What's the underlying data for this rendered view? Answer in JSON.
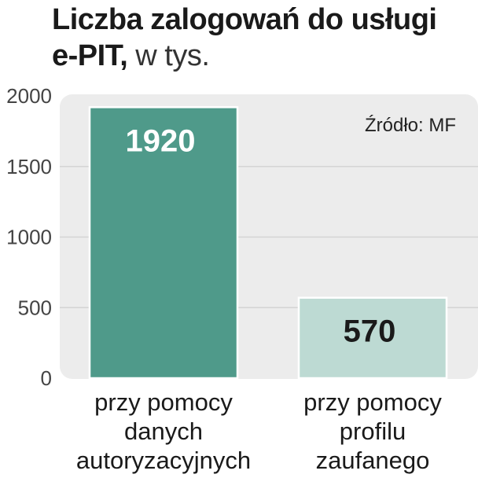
{
  "title": {
    "line1": "Liczba zalogowań do usługi",
    "line2_bold": "e-PIT,",
    "line2_light": " w tys."
  },
  "source": "Źródło: MF",
  "colors": {
    "bar1": "#4f9a8a",
    "bar2": "#bddad3",
    "panel": "#ececec",
    "grid": "#d4d4d4"
  },
  "chart_data": {
    "type": "bar",
    "categories": [
      [
        "przy pomocy",
        "danych",
        "autoryzacyjnych"
      ],
      [
        "przy pomocy",
        "profilu",
        "zaufanego"
      ]
    ],
    "values": [
      1920,
      570
    ],
    "data_labels": [
      "1920",
      "570"
    ],
    "title": "Liczba zalogowań do usługi e-PIT, w tys.",
    "xlabel": "",
    "ylabel": "",
    "ylim": [
      0,
      2000
    ],
    "yticks": [
      0,
      500,
      1000,
      1500,
      2000
    ],
    "grid": true,
    "legend": "none"
  }
}
